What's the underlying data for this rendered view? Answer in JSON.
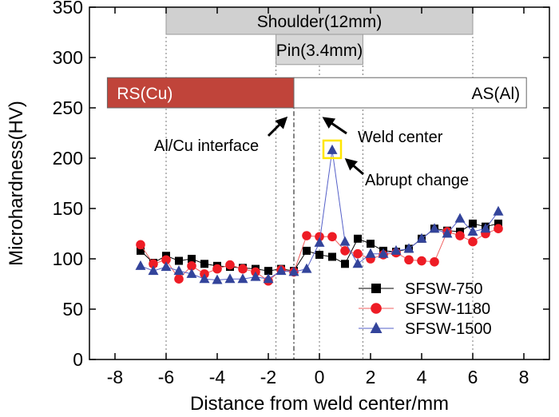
{
  "chart_data": {
    "type": "line",
    "title": "",
    "xlabel": "Distance from weld center/mm",
    "ylabel": "Microhardness(HV)",
    "xlim": [
      -9,
      9
    ],
    "ylim": [
      0,
      350
    ],
    "x_ticks": [
      -8,
      -6,
      -4,
      -2,
      0,
      2,
      4,
      6,
      8
    ],
    "y_ticks": [
      0,
      50,
      100,
      150,
      200,
      250,
      300,
      350
    ],
    "legend_position": "bottom-right",
    "series": [
      {
        "name": "SFSW-750",
        "marker": "square",
        "color": "#000000",
        "marker_color": "#000000",
        "points": [
          [
            -7,
            108
          ],
          [
            -6.5,
            96
          ],
          [
            -6,
            103
          ],
          [
            -5.5,
            98
          ],
          [
            -5,
            100
          ],
          [
            -4.5,
            95
          ],
          [
            -4,
            93
          ],
          [
            -3.5,
            92
          ],
          [
            -3,
            91
          ],
          [
            -2.5,
            90
          ],
          [
            -2,
            88
          ],
          [
            -1.5,
            90
          ],
          [
            -1,
            88
          ],
          [
            -0.5,
            108
          ],
          [
            0,
            104
          ],
          [
            0.5,
            102
          ],
          [
            1,
            95
          ],
          [
            1.5,
            120
          ],
          [
            2,
            115
          ],
          [
            2.5,
            108
          ],
          [
            3,
            107
          ],
          [
            3.5,
            110
          ],
          [
            4,
            120
          ],
          [
            4.5,
            130
          ],
          [
            5,
            128
          ],
          [
            5.5,
            127
          ],
          [
            6,
            135
          ],
          [
            6.5,
            132
          ],
          [
            7,
            135
          ]
        ]
      },
      {
        "name": "SFSW-1180",
        "marker": "circle",
        "color": "#f06060",
        "marker_color": "#ee1c25",
        "points": [
          [
            -7,
            114
          ],
          [
            -6.5,
            95
          ],
          [
            -6,
            99
          ],
          [
            -5.5,
            80
          ],
          [
            -5,
            93
          ],
          [
            -4.5,
            85
          ],
          [
            -4,
            90
          ],
          [
            -3.5,
            94
          ],
          [
            -3,
            90
          ],
          [
            -2.5,
            87
          ],
          [
            -2,
            78
          ],
          [
            -1.5,
            89
          ],
          [
            -1,
            87
          ],
          [
            -0.5,
            123
          ],
          [
            0,
            122
          ],
          [
            0.5,
            122
          ],
          [
            1,
            108
          ],
          [
            1.5,
            105
          ],
          [
            2,
            100
          ],
          [
            2.5,
            104
          ],
          [
            3,
            106
          ],
          [
            3.5,
            99
          ],
          [
            4,
            98
          ],
          [
            4.5,
            97
          ],
          [
            5,
            127
          ],
          [
            5.5,
            123
          ],
          [
            6,
            117
          ],
          [
            6.5,
            125
          ],
          [
            7,
            130
          ]
        ]
      },
      {
        "name": "SFSW-1500",
        "marker": "triangle",
        "color": "#5560c8",
        "marker_color": "#33449b",
        "points": [
          [
            -7,
            93
          ],
          [
            -6.5,
            88
          ],
          [
            -6,
            92
          ],
          [
            -5.5,
            88
          ],
          [
            -5,
            85
          ],
          [
            -4.5,
            80
          ],
          [
            -4,
            79
          ],
          [
            -3.5,
            80
          ],
          [
            -3,
            80
          ],
          [
            -2.5,
            82
          ],
          [
            -2,
            80
          ],
          [
            -1.5,
            88
          ],
          [
            -1,
            87
          ],
          [
            -0.5,
            90
          ],
          [
            0,
            116
          ],
          [
            0.5,
            208
          ],
          [
            1,
            117
          ],
          [
            1.5,
            95
          ],
          [
            2,
            105
          ],
          [
            2.5,
            105
          ],
          [
            3,
            108
          ],
          [
            3.5,
            110
          ],
          [
            4,
            120
          ],
          [
            4.5,
            130
          ],
          [
            5,
            125
          ],
          [
            5.5,
            140
          ],
          [
            6,
            127
          ],
          [
            6.5,
            130
          ],
          [
            7,
            147
          ]
        ]
      }
    ],
    "regions": {
      "shoulder": {
        "label": "Shoulder(12mm)",
        "x_range": [
          -6,
          6
        ]
      },
      "pin": {
        "label": "Pin(3.4mm)",
        "x_range": [
          -1.7,
          1.7
        ]
      },
      "rs": {
        "label": "RS(Cu)",
        "color": "#c0443a"
      },
      "as": {
        "label": "AS(Al)"
      }
    },
    "interface_x": -1,
    "weld_center_x": 0,
    "annotations": [
      {
        "id": "interface",
        "text": "Al/Cu interface"
      },
      {
        "id": "center",
        "text": "Weld center"
      },
      {
        "id": "abrupt",
        "text": "Abrupt change",
        "highlight_color": "#ffe600"
      }
    ]
  }
}
